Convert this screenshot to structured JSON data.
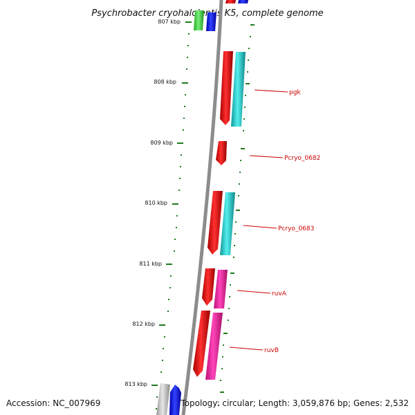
{
  "title": "Psychrobacter cryohalolentis K5, complete genome",
  "footer": {
    "accession": "Accession: NC_007969",
    "summary": "Topology: circular; Length: 3,059,876 bp; Genes: 2,532"
  },
  "colors": {
    "backbone": "#8c8c8c",
    "ticks": "#1f7a1f",
    "label": "#cc0000",
    "red": "#ee1111",
    "cyan": "#22cccc",
    "blue": "#1111ee",
    "green": "#44cc44",
    "magenta": "#ee2299",
    "gray": "#bbbbbb"
  },
  "ticks": [
    "807 kbp",
    "808 kbp",
    "809 kbp",
    "810 kbp",
    "811 kbp",
    "812 kbp",
    "813 kbp"
  ],
  "gene_labels": [
    "pgk",
    "Pcryo_0682",
    "Pcryo_0683",
    "ruvA",
    "ruvB"
  ]
}
